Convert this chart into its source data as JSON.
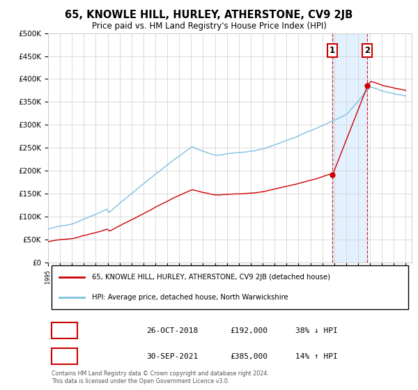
{
  "title": "65, KNOWLE HILL, HURLEY, ATHERSTONE, CV9 2JB",
  "subtitle": "Price paid vs. HM Land Registry's House Price Index (HPI)",
  "ylim": [
    0,
    500000
  ],
  "yticks": [
    0,
    50000,
    100000,
    150000,
    200000,
    250000,
    300000,
    350000,
    400000,
    450000,
    500000
  ],
  "ytick_labels": [
    "£0",
    "£50K",
    "£100K",
    "£150K",
    "£200K",
    "£250K",
    "£300K",
    "£350K",
    "£400K",
    "£450K",
    "£500K"
  ],
  "sale1_date": "26-OCT-2018",
  "sale1_price": 192000,
  "sale1_pct": "38% ↓ HPI",
  "sale2_date": "30-SEP-2021",
  "sale2_price": 385000,
  "sale2_pct": "14% ↑ HPI",
  "hpi_color": "#7fbfdf",
  "price_color": "#cc0000",
  "background_color": "#ffffff",
  "grid_color": "#cccccc",
  "shade_color": "#ddeeff",
  "legend_label_price": "65, KNOWLE HILL, HURLEY, ATHERSTONE, CV9 2JB (detached house)",
  "legend_label_hpi": "HPI: Average price, detached house, North Warwickshire",
  "footnote": "Contains HM Land Registry data © Crown copyright and database right 2024.\nThis data is licensed under the Open Government Licence v3.0.",
  "start_year": 1995,
  "end_year": 2025
}
